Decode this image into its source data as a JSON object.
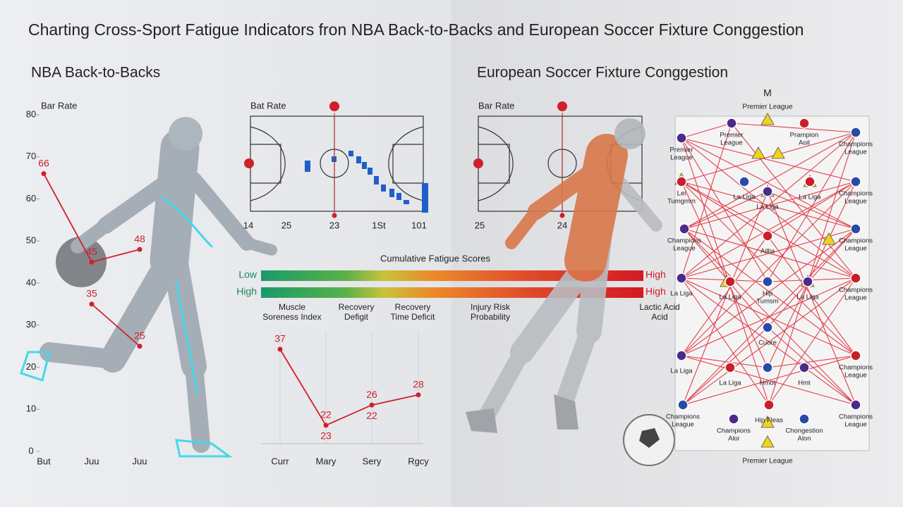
{
  "title": "Charting Cross-Sport Fatigue Indicators fron NBA Back-to-Backs and European Soccer Fixture Conggestion",
  "sections": [
    "NBA Back-to-Backs",
    "European Soccer Fixture Conggestion"
  ],
  "chart_data": [
    {
      "type": "line",
      "title": "Bar Rate",
      "categories": [
        "But",
        "Juu",
        "Juu"
      ],
      "series": [
        {
          "color": "#d0202a",
          "values": [
            66,
            45,
            48
          ]
        },
        {
          "color": "#d0202a",
          "values": [
            null,
            35,
            25
          ]
        }
      ],
      "ylim": [
        0,
        80
      ],
      "yticks": [
        0,
        10,
        20,
        30,
        40,
        50,
        60,
        70,
        80
      ]
    },
    {
      "type": "line",
      "categories": [
        "Curr",
        "Mary",
        "Sery",
        "Rgcy"
      ],
      "values": [
        37,
        22,
        26,
        28
      ],
      "color": "#d0202a",
      "annotations": [
        "23",
        "22"
      ]
    }
  ],
  "court_left": {
    "title": "Bat Rate",
    "labels": [
      "14",
      "25",
      "23",
      "1St",
      "101"
    ]
  },
  "fatigue": {
    "title": "Cumulative Fatigue Scores",
    "rows": [
      [
        "Low",
        "High"
      ],
      [
        "High",
        "High"
      ]
    ],
    "categories": [
      "Muscle\nSoreness Index",
      "Recovery\nDefigit",
      "Recovery\nTime Deficit",
      "Injury Risk\nProbability",
      "Lactic Acid\nAcid"
    ]
  },
  "court_right": {
    "title": "Bar Rate",
    "labels": [
      "25",
      "24"
    ]
  },
  "network": {
    "title": "M",
    "top": "Premier League",
    "bottom": "Premier League",
    "nodes": [
      "Premier\nLeague",
      "Prampion\nAoil",
      "Champions\nLeague",
      "Premier\nLeague",
      "Lei\nTumgmm",
      "La Liga",
      "La Liga",
      "La Liga",
      "Champions\nLeague",
      "Champions\nLeague",
      "Aillia",
      "Champions\nLeague",
      "La Liga",
      "La Liga",
      "Hip\nTumsm",
      "La Liga",
      "Champions\nLeague",
      "Cuore",
      "La Liga",
      "La Liga",
      "Hmot",
      "Hmt",
      "Champions\nLeague",
      "Champions\nLeague",
      "Champions\nAloi",
      "Hip Fleas",
      "Chongestion\nAlon",
      "Champions\nLeague"
    ]
  }
}
